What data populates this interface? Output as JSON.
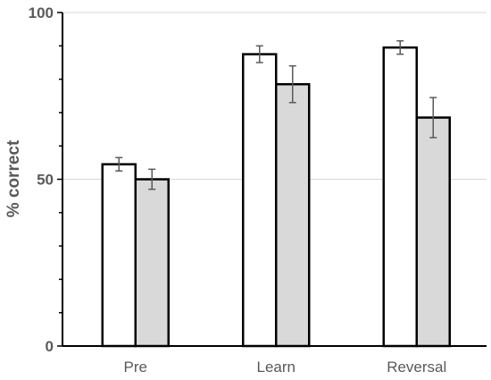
{
  "chart_data": {
    "type": "bar",
    "categories": [
      "Pre",
      "Learn",
      "Reversal"
    ],
    "series": [
      {
        "values": [
          54.5,
          87.5,
          89.5
        ],
        "errors": [
          2.0,
          2.5,
          2.0
        ],
        "color": "#ffffff"
      },
      {
        "values": [
          50.0,
          78.5,
          68.5
        ],
        "errors": [
          3.0,
          5.5,
          6.0
        ],
        "color": "#d9d9d9"
      }
    ],
    "ylabel": "% correct",
    "ylim": [
      0,
      100
    ],
    "yticks": [
      0,
      50,
      100
    ],
    "ytick_labels": [
      "0",
      "50",
      "100"
    ],
    "grid": true
  }
}
